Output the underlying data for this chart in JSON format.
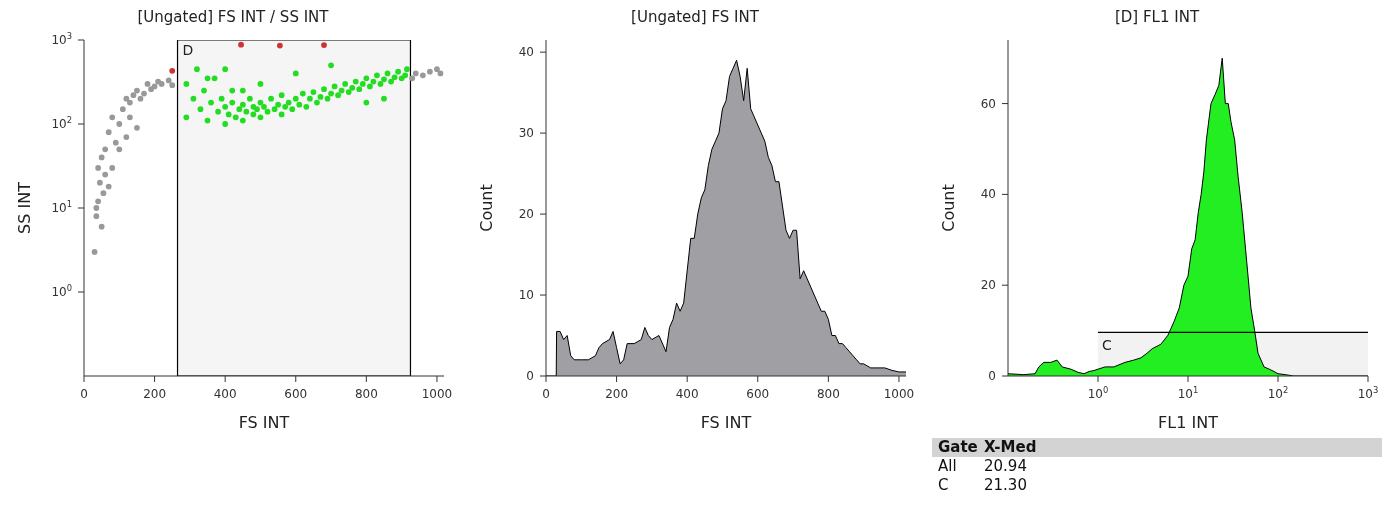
{
  "chart_data": [
    {
      "type": "scatter",
      "title": "[Ungated] FS INT / SS INT",
      "xlabel": "FS INT",
      "ylabel": "SS INT",
      "log": "y",
      "marker": "circle",
      "xlim": [
        0,
        1020
      ],
      "xticks": [
        0,
        200,
        400,
        600,
        800,
        1000
      ],
      "ylim": [
        0.1,
        1000
      ],
      "yticks": [
        {
          "value": 1,
          "label": "10$^{0}$"
        },
        {
          "value": 10,
          "label": "10$^{1}$"
        },
        {
          "value": 100,
          "label": "10$^{2}$"
        },
        {
          "value": 1000,
          "label": "10$^{3}$"
        }
      ],
      "bands": [
        {
          "axis": "x",
          "from": 265,
          "to": 925,
          "label": "D",
          "color": "#000000"
        }
      ],
      "series": [
        {
          "color": "#999999",
          "x": [
            30,
            35,
            40,
            45,
            50,
            55,
            60,
            40,
            35,
            50,
            70,
            80,
            90,
            100,
            110,
            120,
            130,
            140,
            150,
            160,
            170,
            180,
            190,
            200,
            210,
            220,
            240,
            250,
            100,
            120,
            150,
            130,
            60,
            70,
            80,
            940,
            960,
            980,
            1000,
            930,
            1010
          ],
          "values": [
            3,
            8,
            12,
            20,
            6,
            15,
            25,
            30,
            10,
            40,
            18,
            30,
            60,
            100,
            150,
            200,
            180,
            220,
            250,
            200,
            230,
            300,
            260,
            280,
            320,
            300,
            330,
            290,
            50,
            70,
            90,
            120,
            50,
            80,
            120,
            400,
            380,
            420,
            450,
            350,
            400
          ]
        },
        {
          "color": "#22dd22",
          "x": [
            290,
            290,
            310,
            320,
            330,
            340,
            350,
            360,
            370,
            380,
            390,
            400,
            400,
            410,
            420,
            420,
            430,
            440,
            450,
            450,
            460,
            470,
            480,
            480,
            490,
            500,
            500,
            510,
            520,
            530,
            540,
            550,
            560,
            560,
            570,
            580,
            590,
            600,
            610,
            620,
            630,
            640,
            650,
            660,
            670,
            680,
            690,
            700,
            710,
            720,
            730,
            740,
            750,
            760,
            770,
            780,
            790,
            800,
            810,
            820,
            830,
            840,
            850,
            860,
            870,
            880,
            890,
            900,
            910,
            915,
            700,
            600,
            500,
            400,
            850,
            450,
            350,
            800
          ],
          "values": [
            120,
            300,
            200,
            450,
            150,
            250,
            110,
            180,
            350,
            140,
            200,
            100,
            160,
            130,
            180,
            250,
            120,
            150,
            170,
            110,
            140,
            200,
            130,
            160,
            150,
            120,
            180,
            160,
            140,
            200,
            150,
            170,
            130,
            220,
            160,
            180,
            150,
            200,
            170,
            230,
            160,
            200,
            240,
            180,
            210,
            260,
            200,
            230,
            280,
            220,
            250,
            300,
            240,
            270,
            320,
            260,
            300,
            350,
            280,
            320,
            380,
            300,
            340,
            400,
            320,
            360,
            420,
            350,
            380,
            450,
            500,
            400,
            300,
            450,
            200,
            250,
            350,
            180
          ]
        },
        {
          "color": "#cc3333",
          "x": [
            250,
            445,
            555,
            680
          ],
          "values": [
            430,
            880,
            860,
            870
          ]
        }
      ]
    },
    {
      "type": "area",
      "title": "[Ungated] FS INT",
      "xlabel": "FS INT",
      "ylabel": "Count",
      "xlim": [
        0,
        1020
      ],
      "xticks": [
        0,
        200,
        400,
        600,
        800,
        1000
      ],
      "ylim": [
        0,
        41.5
      ],
      "yticks": [
        0,
        10,
        20,
        30,
        40
      ],
      "series": [
        {
          "color": "#a0a0a4",
          "x": [
            0,
            29,
            30,
            40,
            50,
            60,
            70,
            80,
            100,
            120,
            140,
            150,
            160,
            180,
            190,
            200,
            210,
            220,
            230,
            250,
            270,
            280,
            290,
            300,
            320,
            340,
            350,
            360,
            370,
            380,
            390,
            400,
            410,
            420,
            430,
            440,
            450,
            460,
            470,
            480,
            490,
            500,
            510,
            520,
            530,
            540,
            550,
            560,
            570,
            580,
            590,
            600,
            610,
            620,
            630,
            640,
            650,
            660,
            670,
            680,
            690,
            700,
            710,
            720,
            730,
            740,
            750,
            760,
            770,
            780,
            790,
            800,
            810,
            820,
            830,
            840,
            850,
            860,
            870,
            880,
            890,
            900,
            920,
            940,
            960,
            980,
            1000,
            1020
          ],
          "values": [
            0,
            0,
            5.5,
            5.5,
            4.5,
            5,
            2.5,
            2,
            2,
            2,
            2.5,
            3.5,
            4,
            4.5,
            5.5,
            3.5,
            1.5,
            2,
            4,
            4,
            4.5,
            6,
            5,
            4.5,
            5,
            3,
            6,
            7,
            9,
            8,
            9,
            13,
            17,
            17,
            20,
            22,
            23,
            26,
            28,
            29,
            30,
            33,
            34,
            37,
            38,
            39,
            37,
            34,
            38,
            33,
            32,
            31,
            30,
            29,
            27,
            26,
            24,
            24,
            21,
            18,
            17,
            18,
            18,
            12,
            13,
            12,
            11,
            10,
            9,
            8,
            8,
            7,
            5,
            5,
            4,
            4,
            3.5,
            3,
            2.5,
            2,
            1.5,
            1.5,
            1,
            1,
            1,
            0.7,
            0.5,
            0.5
          ]
        }
      ]
    },
    {
      "type": "area",
      "title": "[D] FL1 INT",
      "xlabel": "FL1 INT",
      "ylabel": "Count",
      "log": "x",
      "xlim": [
        0.1,
        1000
      ],
      "xticks": [
        {
          "value": 1,
          "label": "10$^{0}$"
        },
        {
          "value": 10,
          "label": "10$^{1}$"
        },
        {
          "value": 100,
          "label": "10$^{2}$"
        },
        {
          "value": 1000,
          "label": "10$^{3}$"
        }
      ],
      "ylim": [
        0,
        74
      ],
      "yticks": [
        0,
        20,
        40,
        60
      ],
      "bands": [
        {
          "axis": "x",
          "from": 1,
          "to": 1000,
          "label": "C",
          "color": "#000000"
        }
      ],
      "series": [
        {
          "color": "#22ee22",
          "x": [
            0.1,
            0.15,
            0.2,
            0.22,
            0.25,
            0.3,
            0.35,
            0.4,
            0.5,
            0.6,
            0.7,
            0.8,
            0.9,
            1,
            1.2,
            1.5,
            2,
            2.5,
            3,
            3.5,
            4,
            5,
            6,
            7,
            8,
            9,
            10,
            11,
            12,
            13,
            14,
            15,
            16,
            18,
            20,
            22,
            24,
            26,
            28,
            30,
            33,
            36,
            40,
            45,
            50,
            55,
            60,
            70,
            80,
            90,
            100,
            120,
            150,
            1000
          ],
          "values": [
            0.5,
            0.3,
            0.5,
            2,
            3,
            3,
            3.5,
            2,
            1.5,
            0.8,
            0.5,
            1,
            1.2,
            1.5,
            2,
            2,
            3,
            3.5,
            4,
            5,
            6,
            7,
            9,
            12,
            15,
            20,
            22,
            28,
            30,
            36,
            40,
            45,
            52,
            60,
            62,
            64,
            70,
            60,
            60,
            56,
            52,
            44,
            36,
            25,
            15,
            10,
            5,
            2,
            1.5,
            1,
            0.5,
            0.3,
            0,
            0
          ]
        }
      ]
    },
    {
      "type": "other",
      "annotations": [
        "Gate",
        "X-Med",
        "All",
        "20.94",
        "C",
        "21.30"
      ]
    }
  ]
}
